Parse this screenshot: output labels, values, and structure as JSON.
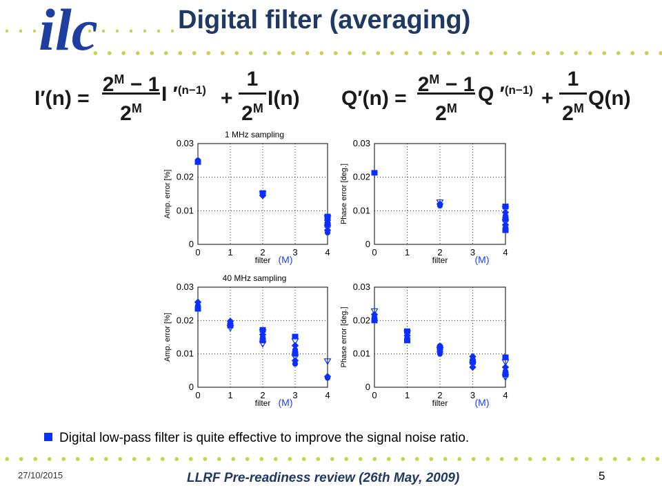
{
  "slide": {
    "title": "Digital filter (averaging)",
    "logo_text": "ilc"
  },
  "formula_i": {
    "lhs": "I′(n) =",
    "frac1_num": "2",
    "frac1_num_sup": "M",
    "frac1_num_tail": " − 1",
    "frac1_den": "2",
    "frac1_den_sup": "M",
    "prev_term": "I ′",
    "prev_sup": "(n−1)",
    "plus": "+",
    "frac2_num": "1",
    "frac2_den": "2",
    "frac2_den_sup": "M",
    "cur_term": "I(n)"
  },
  "formula_q": {
    "lhs": "Q′(n) =",
    "frac1_num": "2",
    "frac1_num_sup": "M",
    "frac1_num_tail": " − 1",
    "frac1_den": "2",
    "frac1_den_sup": "M",
    "prev_term": "Q ′",
    "prev_sup": "(n−1)",
    "plus": "+",
    "frac2_num": "1",
    "frac2_den": "2",
    "frac2_den_sup": "M",
    "cur_term": "Q(n)"
  },
  "chart_data": [
    {
      "type": "scatter",
      "title": "1 MHz sampling",
      "xlabel": "filter",
      "xlabel_suffix": "(M)",
      "ylabel": "Amp. error [%]",
      "xlim": [
        0,
        4
      ],
      "ylim": [
        0,
        0.03
      ],
      "xticks": [
        "0",
        "1",
        "2",
        "3",
        "4"
      ],
      "yticks": [
        "0",
        "0.01",
        "0.02",
        "0.03"
      ],
      "grid": true,
      "x": [
        0,
        0,
        2,
        2,
        2,
        4,
        4,
        4,
        4,
        4,
        4,
        4,
        4
      ],
      "y": [
        0.0245,
        0.025,
        0.0145,
        0.015,
        0.0153,
        0.0035,
        0.0042,
        0.005,
        0.0058,
        0.0065,
        0.0072,
        0.0078,
        0.0083
      ]
    },
    {
      "type": "scatter",
      "title": "",
      "xlabel": "filter",
      "xlabel_suffix": "(M)",
      "ylabel": "Phase error [deg.]",
      "xlim": [
        0,
        4
      ],
      "ylim": [
        0,
        0.03
      ],
      "xticks": [
        "0",
        "1",
        "2",
        "3",
        "4"
      ],
      "yticks": [
        "0",
        "0.01",
        "0.02",
        "0.03"
      ],
      "grid": true,
      "x": [
        0,
        2,
        2,
        2,
        4,
        4,
        4,
        4,
        4,
        4,
        4,
        4,
        4
      ],
      "y": [
        0.0213,
        0.0115,
        0.012,
        0.0125,
        0.0042,
        0.005,
        0.0058,
        0.0066,
        0.0075,
        0.0085,
        0.0095,
        0.0105,
        0.0113
      ]
    },
    {
      "type": "scatter",
      "title": "40 MHz sampling",
      "xlabel": "filter",
      "xlabel_suffix": "(M)",
      "ylabel": "Amp. error [%]",
      "xlim": [
        0,
        4
      ],
      "ylim": [
        0,
        0.03
      ],
      "xticks": [
        "0",
        "1",
        "2",
        "3",
        "4"
      ],
      "yticks": [
        "0",
        "0.01",
        "0.02",
        "0.03"
      ],
      "grid": true,
      "x": [
        0,
        0,
        0,
        1,
        1,
        1,
        1,
        2,
        2,
        2,
        2,
        2,
        2,
        3,
        3,
        3,
        3,
        3,
        3,
        3,
        3,
        4,
        4,
        4
      ],
      "y": [
        0.0235,
        0.0245,
        0.0255,
        0.0178,
        0.0185,
        0.0192,
        0.0198,
        0.013,
        0.014,
        0.015,
        0.0158,
        0.0165,
        0.0172,
        0.007,
        0.008,
        0.009,
        0.01,
        0.0112,
        0.0125,
        0.0138,
        0.0152,
        0.0028,
        0.0032,
        0.0078
      ]
    },
    {
      "type": "scatter",
      "title": "",
      "xlabel": "filter",
      "xlabel_suffix": "(M)",
      "ylabel": "Phase error [deg.]",
      "xlim": [
        0,
        4
      ],
      "ylim": [
        0,
        0.03
      ],
      "xticks": [
        "0",
        "1",
        "2",
        "3",
        "4"
      ],
      "yticks": [
        "0",
        "0.01",
        "0.02",
        "0.03"
      ],
      "grid": true,
      "x": [
        0,
        0,
        0,
        0,
        1,
        1,
        1,
        1,
        1,
        2,
        2,
        2,
        2,
        2,
        3,
        3,
        3,
        3,
        3,
        4,
        4,
        4,
        4,
        4,
        4
      ],
      "y": [
        0.02,
        0.021,
        0.0218,
        0.0228,
        0.014,
        0.0148,
        0.0155,
        0.0162,
        0.0168,
        0.01,
        0.0106,
        0.0112,
        0.0118,
        0.0124,
        0.006,
        0.0068,
        0.0076,
        0.0083,
        0.0092,
        0.003,
        0.0038,
        0.0048,
        0.006,
        0.0075,
        0.009
      ]
    }
  ],
  "bullet": {
    "text": "Digital low-pass filter is quite effective to improve the signal noise ratio."
  },
  "footer": {
    "date": "27/10/2015",
    "center": "LLRF Pre-readiness review (26th May, 2009)",
    "page": "5"
  },
  "colors": {
    "title": "#1f3864",
    "marker": "#0a2fff",
    "dots": "#c8d14a",
    "suffix": "#1a3cff"
  }
}
